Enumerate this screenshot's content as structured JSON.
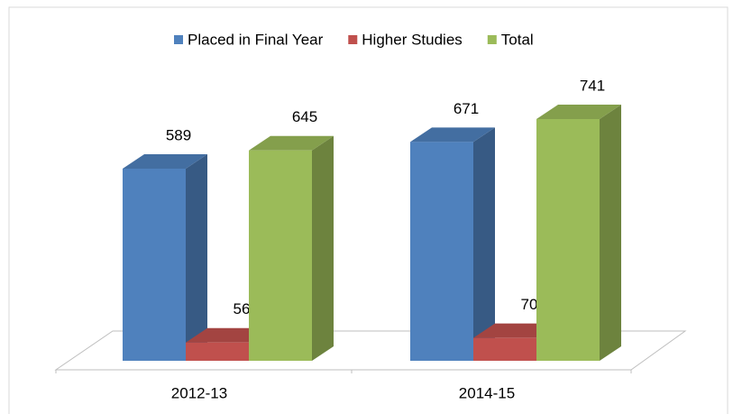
{
  "chart_data": {
    "type": "bar3d",
    "categories": [
      "2012-13",
      "2014-15"
    ],
    "series": [
      {
        "name": "Placed in Final Year",
        "color": "#4f81bd",
        "values": [
          589,
          671
        ]
      },
      {
        "name": "Higher Studies",
        "color": "#c0504d",
        "values": [
          56,
          70
        ]
      },
      {
        "name": "Total",
        "color": "#9bbb59",
        "values": [
          645,
          741
        ]
      }
    ],
    "legend": "top"
  }
}
